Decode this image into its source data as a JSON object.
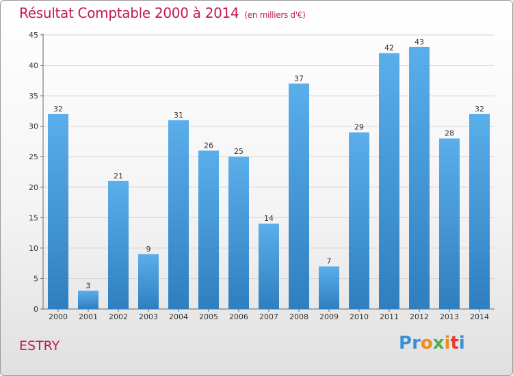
{
  "chart_data": {
    "type": "bar",
    "title": "Résultat Comptable 2000 à 2014",
    "subtitle": "(en milliers d'€)",
    "categories": [
      "2000",
      "2001",
      "2002",
      "2003",
      "2004",
      "2005",
      "2006",
      "2007",
      "2008",
      "2009",
      "2010",
      "2011",
      "2012",
      "2013",
      "2014"
    ],
    "values": [
      32,
      3,
      21,
      9,
      31,
      26,
      25,
      14,
      37,
      7,
      29,
      42,
      43,
      28,
      32
    ],
    "ylim": [
      0,
      45
    ],
    "yticks": [
      0,
      5,
      10,
      15,
      20,
      25,
      30,
      35,
      40,
      45
    ],
    "xlabel": "",
    "ylabel": "",
    "grid": true,
    "bar_color": "#3a91d4"
  },
  "commune": "ESTRY",
  "logo": {
    "letters": [
      "P",
      "r",
      "o",
      "x",
      "i",
      "t",
      "i"
    ],
    "colors": [
      "#3b8fd6",
      "#3b8fd6",
      "#f08c1e",
      "#4caf50",
      "#f08c1e",
      "#e53935",
      "#3b8fd6"
    ]
  }
}
